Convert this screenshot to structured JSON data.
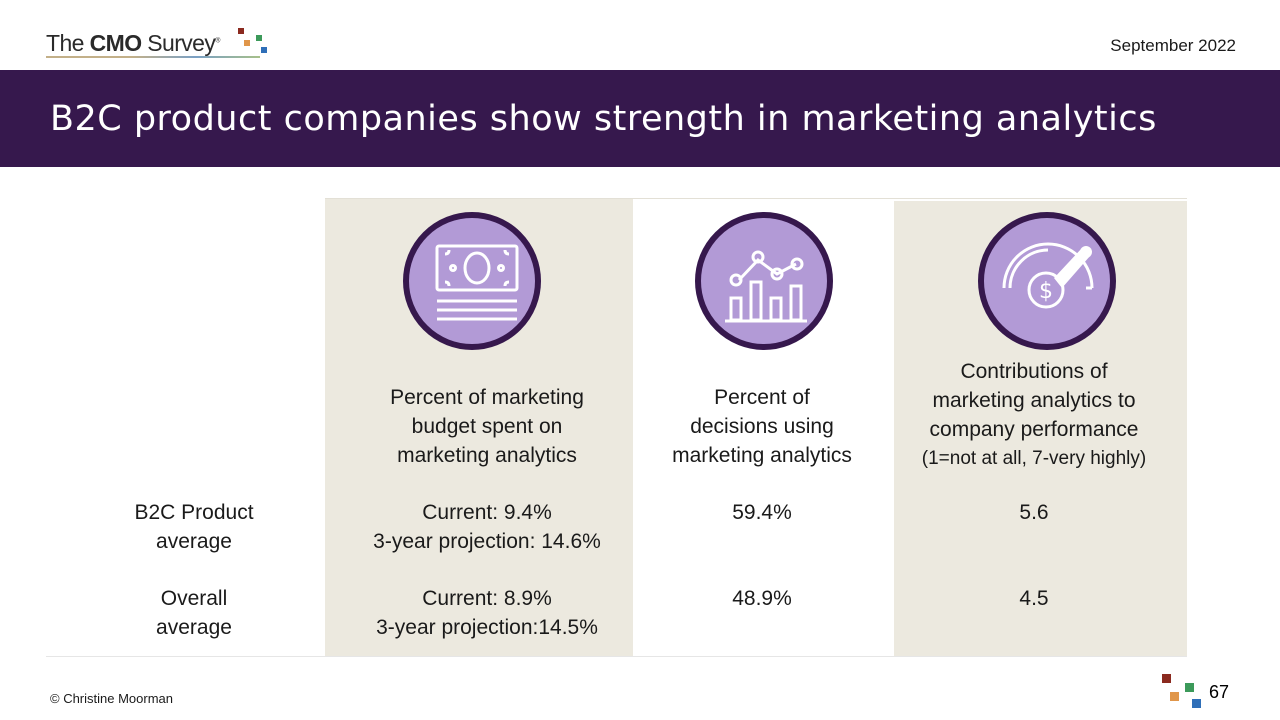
{
  "header": {
    "logo_prefix": "The ",
    "logo_bold": "CMO",
    "logo_suffix": " Survey",
    "logo_reg": "®",
    "date": "September 2022"
  },
  "title": "B2C product companies show strength in marketing analytics",
  "icons": [
    "money-bill-icon",
    "analytics-chart-icon",
    "performance-gauge-icon"
  ],
  "table": {
    "columns": [
      {
        "lines": [
          "Percent of marketing",
          "budget spent on",
          "marketing analytics"
        ],
        "note": ""
      },
      {
        "lines": [
          "Percent of",
          "decisions using",
          "marketing analytics"
        ],
        "note": ""
      },
      {
        "lines": [
          "Contributions of",
          "marketing analytics to",
          "company performance"
        ],
        "note": "(1=not at all, 7-very highly)"
      }
    ],
    "rows": [
      {
        "label": [
          "B2C Product",
          "average"
        ],
        "budget": [
          "Current: 9.4%",
          "3-year projection: 14.6%"
        ],
        "decisions": "59.4%",
        "contribution": "5.6"
      },
      {
        "label": [
          "Overall",
          "average"
        ],
        "budget": [
          "Current: 8.9%",
          "3-year projection:14.5%"
        ],
        "decisions": "48.9%",
        "contribution": "4.5"
      }
    ]
  },
  "footer": {
    "copyright": "© Christine Moorman",
    "page_number": "67"
  },
  "colors": {
    "banner": "#36184d",
    "icon_fill": "#b29ad6",
    "column_shade": "#ece9df",
    "logo_red": "#8b2a1f",
    "logo_orange": "#e0964a",
    "logo_green": "#3c9a5a",
    "logo_blue": "#2f6fb8"
  }
}
